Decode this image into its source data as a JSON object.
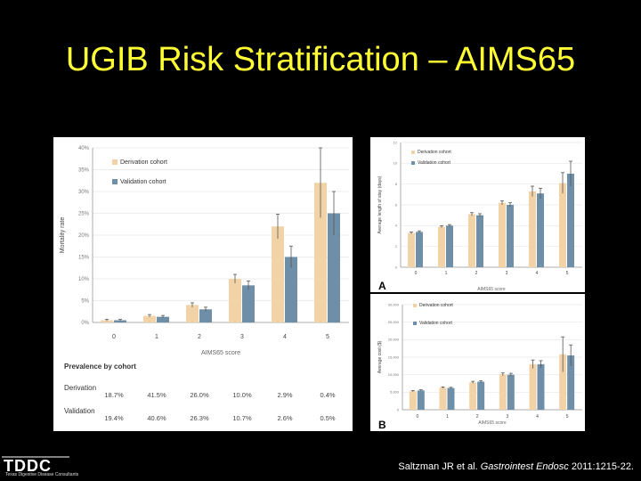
{
  "slide": {
    "title": "UGIB Risk Stratification – AIMS65",
    "logo_text": "TDDC",
    "logo_subtext": "Texas Digestive Disease Consultants",
    "citation_authors": "Saltzman JR et al. ",
    "citation_journal": "Gastrointest Endosc",
    "citation_rest": " 2011:1215-22."
  },
  "colors": {
    "derivation": "#f2d3a8",
    "validation": "#6f8fa8",
    "title": "#ffff33",
    "grid": "#e6e6e6",
    "error": "#555555"
  },
  "chart_data": [
    {
      "type": "bar",
      "ylabel": "Mortality rate",
      "xlabel": "AIMS65 score",
      "categories": [
        "0",
        "1",
        "2",
        "3",
        "4",
        "5"
      ],
      "ylim": [
        0,
        40
      ],
      "yticks": [
        "0%",
        "5%",
        "10%",
        "15%",
        "20%",
        "25%",
        "30%",
        "35%",
        "40%"
      ],
      "legend_position": "top-left",
      "series": [
        {
          "name": "Derivation cohort",
          "values": [
            0.5,
            1.5,
            4.0,
            10.0,
            22.0,
            32.0
          ],
          "errors": [
            0.2,
            0.3,
            0.5,
            1.0,
            2.8,
            8.0
          ]
        },
        {
          "name": "Validation cohort",
          "values": [
            0.5,
            1.3,
            3.0,
            8.5,
            15.0,
            25.0
          ],
          "errors": [
            0.2,
            0.3,
            0.5,
            1.0,
            2.5,
            5.0
          ]
        }
      ],
      "table": {
        "header": "Prevalence by cohort",
        "rows": [
          {
            "label": "Derivation",
            "values": [
              "18.7%",
              "41.5%",
              "26.0%",
              "10.0%",
              "2.9%",
              "0.4%"
            ]
          },
          {
            "label": "Validation",
            "values": [
              "19.4%",
              "40.6%",
              "26.3%",
              "10.7%",
              "2.6%",
              "0.5%"
            ]
          }
        ]
      }
    },
    {
      "type": "bar",
      "panel_label": "A",
      "ylabel": "Average length of stay (days)",
      "xlabel": "AIMS65 score",
      "categories": [
        "0",
        "1",
        "2",
        "3",
        "4",
        "5"
      ],
      "ylim": [
        0,
        12
      ],
      "yticks": [
        "0",
        "2",
        "4",
        "6",
        "8",
        "10",
        "12"
      ],
      "legend_position": "top-left",
      "series": [
        {
          "name": "Derivation cohort",
          "values": [
            3.3,
            3.9,
            5.1,
            6.2,
            7.3,
            8.1
          ],
          "errors": [
            0.1,
            0.1,
            0.15,
            0.2,
            0.5,
            1.0
          ]
        },
        {
          "name": "Validation cohort",
          "values": [
            3.4,
            4.0,
            5.0,
            6.0,
            7.1,
            9.0
          ],
          "errors": [
            0.1,
            0.1,
            0.15,
            0.2,
            0.5,
            1.2
          ]
        }
      ]
    },
    {
      "type": "bar",
      "panel_label": "B",
      "ylabel": "Average cost ($)",
      "xlabel": "AIMS65 score",
      "categories": [
        "0",
        "1",
        "2",
        "3",
        "4",
        "5"
      ],
      "ylim": [
        0,
        30000
      ],
      "yticks": [
        "0",
        "5,000",
        "10,000",
        "15,000",
        "20,000",
        "25,000",
        "30,000"
      ],
      "legend_position": "top-left",
      "series": [
        {
          "name": "Derivation cohort",
          "values": [
            5300,
            6300,
            7800,
            10100,
            13000,
            15800
          ],
          "errors": [
            200,
            200,
            300,
            400,
            1200,
            5000
          ]
        },
        {
          "name": "Validation cohort",
          "values": [
            5500,
            6200,
            8000,
            10000,
            13000,
            15500
          ],
          "errors": [
            200,
            200,
            300,
            400,
            1000,
            3000
          ]
        }
      ]
    }
  ]
}
